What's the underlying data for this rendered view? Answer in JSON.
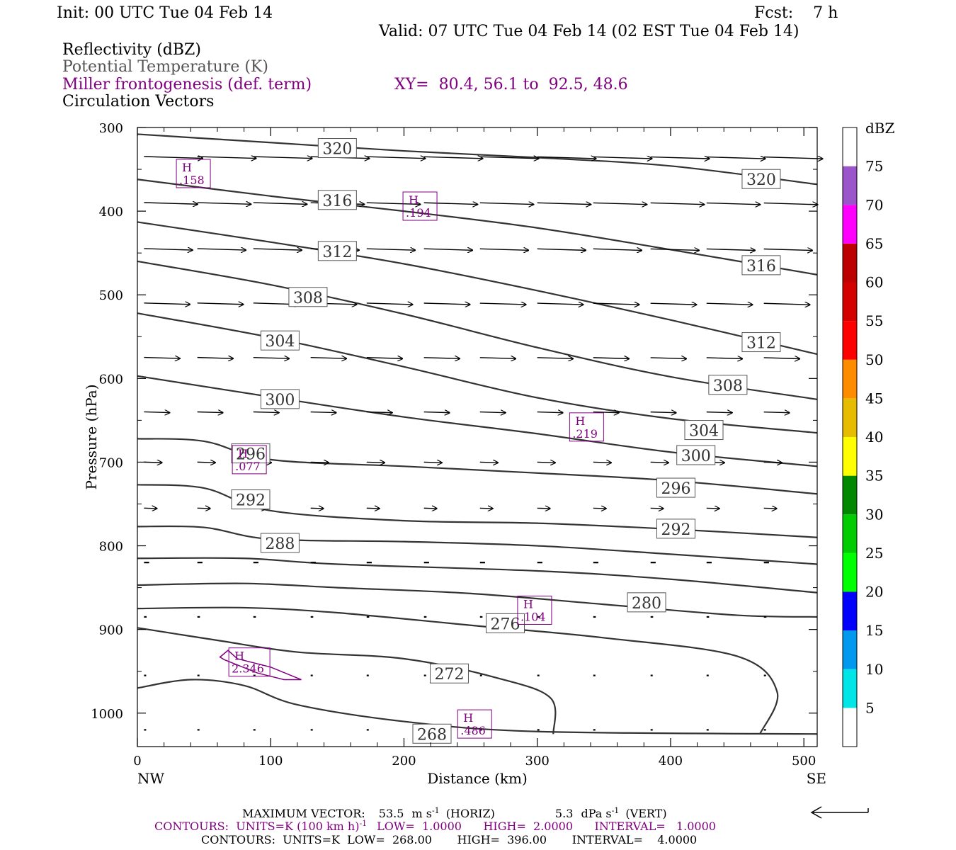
{
  "header": {
    "init": "Init: 00 UTC Tue 04 Feb 14",
    "fcst": "Fcst:    7 h",
    "valid": "Valid: 07 UTC Tue 04 Feb 14 (02 EST Tue 04 Feb 14)",
    "fields": [
      {
        "text": "Reflectivity (dBZ)",
        "color": "#000000"
      },
      {
        "text": "Potential Temperature (K)",
        "color": "#555555"
      },
      {
        "text": "Miller frontogenesis (def. term)",
        "color": "#800080"
      },
      {
        "text": "Circulation Vectors",
        "color": "#000000"
      }
    ],
    "xy": "XY=  80.4, 56.1 to  92.5, 48.6"
  },
  "footer": {
    "max_vector_label": "MAXIMUM VECTOR:",
    "horiz_value": "53.5",
    "horiz_unit": "m s",
    "horiz_exp": "-1",
    "horiz_tag": "(HORIZ)",
    "vert_value": "5.3",
    "vert_unit": "dPa s",
    "vert_exp": "-1",
    "vert_tag": "(VERT)",
    "contours_front": "CONTOURS:  UNITS=K (100 km h)",
    "contours_front_exp": "-1",
    "contours_front_rest": "LOW=  1.0000      HIGH=  2.0000      INTERVAL=   1.0000",
    "contours_theta": "CONTOURS:  UNITS=K  LOW=  268.00       HIGH=  396.00       INTERVAL=    4.0000"
  },
  "chart_data": {
    "type": "cross-section",
    "xlabel": "Distance (km)",
    "ylabel": "Pressure (hPa)",
    "xlim": [
      0,
      510
    ],
    "ylim": [
      300,
      1040
    ],
    "y_log_scale": false,
    "x_ticks": [
      0,
      100,
      200,
      300,
      400,
      500
    ],
    "y_ticks": [
      300,
      400,
      500,
      600,
      700,
      800,
      900,
      1000
    ],
    "left_endpoint": "NW",
    "right_endpoint": "SE",
    "colorbar": {
      "title": "dBZ",
      "levels": [
        5,
        10,
        15,
        20,
        25,
        30,
        35,
        40,
        45,
        50,
        55,
        60,
        65,
        70,
        75
      ],
      "colors": [
        "#ffffff",
        "#00e6e6",
        "#0099ee",
        "#0000ff",
        "#00ff00",
        "#00cc00",
        "#008800",
        "#ffff00",
        "#e6bc00",
        "#ff8c00",
        "#ff0000",
        "#d40000",
        "#bc0000",
        "#ff00ff",
        "#9955c9",
        "#ffffff"
      ]
    },
    "isentropes": [
      {
        "theta": 320,
        "points": [
          [
            0,
            308
          ],
          [
            100,
            318
          ],
          [
            200,
            328
          ],
          [
            300,
            336
          ],
          [
            400,
            346
          ],
          [
            510,
            368
          ]
        ],
        "labels": [
          [
            150,
            325
          ],
          [
            468,
            362
          ]
        ]
      },
      {
        "theta": 316,
        "points": [
          [
            0,
            362
          ],
          [
            100,
            382
          ],
          [
            200,
            400
          ],
          [
            300,
            420
          ],
          [
            400,
            446
          ],
          [
            510,
            476
          ]
        ],
        "labels": [
          [
            150,
            387
          ],
          [
            468,
            465
          ]
        ]
      },
      {
        "theta": 312,
        "points": [
          [
            0,
            413
          ],
          [
            100,
            437
          ],
          [
            200,
            463
          ],
          [
            300,
            495
          ],
          [
            400,
            530
          ],
          [
            510,
            571
          ]
        ],
        "labels": [
          [
            150,
            448
          ],
          [
            468,
            557
          ]
        ]
      },
      {
        "theta": 308,
        "points": [
          [
            0,
            460
          ],
          [
            100,
            488
          ],
          [
            200,
            523
          ],
          [
            300,
            563
          ],
          [
            400,
            598
          ],
          [
            510,
            625
          ]
        ],
        "labels": [
          [
            128,
            503
          ],
          [
            443,
            608
          ]
        ]
      },
      {
        "theta": 304,
        "points": [
          [
            0,
            522
          ],
          [
            100,
            551
          ],
          [
            200,
            586
          ],
          [
            300,
            623
          ],
          [
            400,
            648
          ],
          [
            510,
            665
          ]
        ],
        "labels": [
          [
            107,
            555
          ],
          [
            425,
            662
          ]
        ]
      },
      {
        "theta": 300,
        "points": [
          [
            0,
            597
          ],
          [
            100,
            622
          ],
          [
            200,
            646
          ],
          [
            300,
            666
          ],
          [
            400,
            688
          ],
          [
            510,
            705
          ]
        ],
        "labels": [
          [
            107,
            625
          ],
          [
            419,
            692
          ]
        ]
      },
      {
        "theta": 296,
        "points": [
          [
            0,
            672
          ],
          [
            50,
            675
          ],
          [
            100,
            697
          ],
          [
            200,
            705
          ],
          [
            300,
            713
          ],
          [
            400,
            722
          ],
          [
            510,
            738
          ]
        ],
        "labels": [
          [
            85,
            690
          ],
          [
            404,
            731
          ]
        ]
      },
      {
        "theta": 292,
        "points": [
          [
            0,
            727
          ],
          [
            50,
            731
          ],
          [
            100,
            758
          ],
          [
            200,
            770
          ],
          [
            300,
            773
          ],
          [
            400,
            780
          ],
          [
            510,
            790
          ]
        ],
        "labels": [
          [
            85,
            745
          ],
          [
            404,
            780
          ]
        ]
      },
      {
        "theta": 288,
        "points": [
          [
            0,
            777
          ],
          [
            50,
            778
          ],
          [
            100,
            792
          ],
          [
            200,
            795
          ],
          [
            300,
            800
          ],
          [
            400,
            810
          ],
          [
            510,
            822
          ]
        ],
        "labels": [
          [
            107,
            797
          ]
        ]
      },
      {
        "theta": 284,
        "points": [
          [
            0,
            815
          ],
          [
            80,
            815
          ],
          [
            150,
            822
          ],
          [
            300,
            830
          ],
          [
            400,
            840
          ],
          [
            510,
            856
          ]
        ],
        "labels": []
      },
      {
        "theta": 280,
        "points": [
          [
            0,
            847
          ],
          [
            80,
            845
          ],
          [
            150,
            850
          ],
          [
            250,
            857
          ],
          [
            350,
            870
          ],
          [
            450,
            883
          ],
          [
            510,
            885
          ]
        ],
        "labels": [
          [
            382,
            868
          ]
        ]
      },
      {
        "theta": 276,
        "points": [
          [
            0,
            875
          ],
          [
            80,
            874
          ],
          [
            150,
            880
          ],
          [
            250,
            895
          ],
          [
            350,
            910
          ],
          [
            450,
            932
          ],
          [
            480,
            975
          ],
          [
            467,
            1025
          ]
        ],
        "labels": [
          [
            276,
            893
          ]
        ]
      },
      {
        "theta": 272,
        "points": [
          [
            0,
            898
          ],
          [
            60,
            913
          ],
          [
            120,
            927
          ],
          [
            200,
            935
          ],
          [
            270,
            958
          ],
          [
            310,
            982
          ],
          [
            312,
            1025
          ]
        ],
        "labels": [
          [
            234,
            953
          ]
        ]
      },
      {
        "theta": 268,
        "points": [
          [
            0,
            970
          ],
          [
            40,
            960
          ],
          [
            80,
            967
          ],
          [
            120,
            990
          ],
          [
            200,
            1010
          ],
          [
            300,
            1022
          ],
          [
            510,
            1025
          ]
        ],
        "labels": [
          [
            221,
            1025
          ]
        ]
      }
    ],
    "frontogenesis_highs": [
      {
        "label": "H",
        "value": ".158",
        "x": 42,
        "y": 355
      },
      {
        "label": "H",
        "value": ".194",
        "x": 212,
        "y": 394
      },
      {
        "label": "H",
        "value": ".219",
        "x": 337,
        "y": 658
      },
      {
        "label": "H",
        "value": ".077",
        "x": 84,
        "y": 697
      },
      {
        "label": "H",
        "value": ".104",
        "x": 298,
        "y": 877
      },
      {
        "label": "H",
        "value": "2.346",
        "x": 84,
        "y": 939
      },
      {
        "label": "H",
        "value": ".486",
        "x": 253,
        "y": 1013
      }
    ],
    "frontogenesis_contour": [
      [
        62,
        933
      ],
      [
        68,
        925
      ],
      [
        75,
        935
      ],
      [
        100,
        945
      ],
      [
        123,
        960
      ],
      [
        110,
        960
      ],
      [
        90,
        952
      ],
      [
        65,
        936
      ]
    ],
    "vector_rows": [
      {
        "p": 335,
        "len": 0.23
      },
      {
        "p": 390,
        "len": 0.21
      },
      {
        "p": 445,
        "len": 0.19
      },
      {
        "p": 510,
        "len": 0.18
      },
      {
        "p": 575,
        "len": 0.14
      },
      {
        "p": 640,
        "len": 0.1
      },
      {
        "p": 700,
        "len": 0.07
      },
      {
        "p": 755,
        "len": 0.05
      },
      {
        "p": 820,
        "len": 0.02
      },
      {
        "p": 885,
        "len": 0.01
      },
      {
        "p": 955,
        "len": 0.005
      },
      {
        "p": 1020,
        "len": 0.004
      }
    ],
    "vector_x": [
      5,
      45,
      87,
      130,
      172,
      215,
      257,
      300,
      342,
      385,
      427,
      470
    ]
  }
}
